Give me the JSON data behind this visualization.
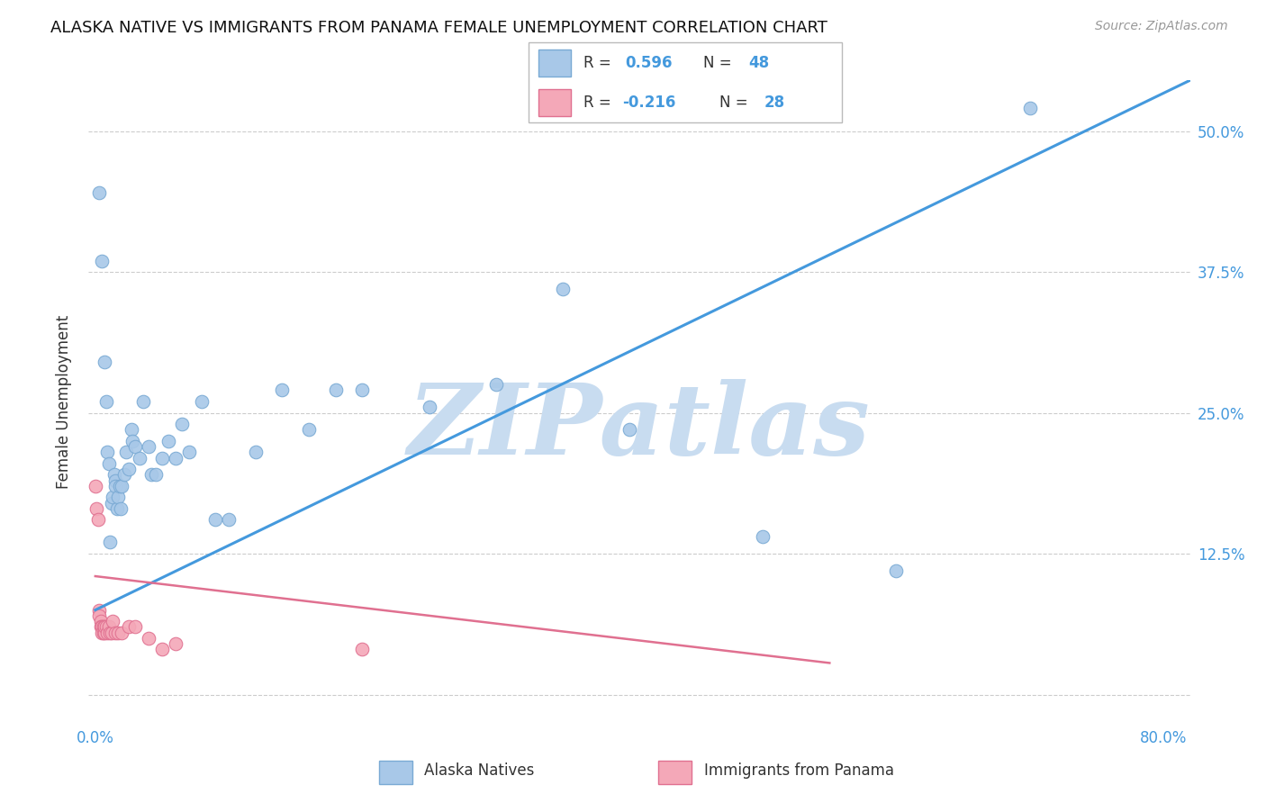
{
  "title": "ALASKA NATIVE VS IMMIGRANTS FROM PANAMA FEMALE UNEMPLOYMENT CORRELATION CHART",
  "source": "Source: ZipAtlas.com",
  "ylabel": "Female Unemployment",
  "xlim": [
    -0.005,
    0.82
  ],
  "ylim": [
    -0.025,
    0.545
  ],
  "ytick_vals": [
    0.0,
    0.125,
    0.25,
    0.375,
    0.5
  ],
  "ytick_labels": [
    "",
    "12.5%",
    "25.0%",
    "37.5%",
    "50.0%"
  ],
  "xtick_vals": [
    0.0,
    0.1,
    0.2,
    0.3,
    0.4,
    0.5,
    0.6,
    0.7,
    0.8
  ],
  "xtick_labels": [
    "0.0%",
    "",
    "",
    "",
    "",
    "",
    "",
    "",
    "80.0%"
  ],
  "alaska_color": "#a8c8e8",
  "alaska_edge": "#7aaad4",
  "panama_color": "#f4a8b8",
  "panama_edge": "#e07090",
  "blue_line_color": "#4499dd",
  "pink_line_color": "#e07090",
  "watermark": "ZIPatlas",
  "watermark_color": "#c8dcf0",
  "grid_color": "#cccccc",
  "background_color": "#ffffff",
  "alaska_x": [
    0.003,
    0.005,
    0.007,
    0.008,
    0.009,
    0.01,
    0.011,
    0.012,
    0.013,
    0.014,
    0.015,
    0.015,
    0.016,
    0.017,
    0.018,
    0.019,
    0.02,
    0.022,
    0.023,
    0.025,
    0.027,
    0.028,
    0.03,
    0.033,
    0.036,
    0.04,
    0.042,
    0.045,
    0.05,
    0.055,
    0.06,
    0.065,
    0.07,
    0.08,
    0.09,
    0.1,
    0.12,
    0.14,
    0.16,
    0.18,
    0.2,
    0.25,
    0.3,
    0.35,
    0.4,
    0.5,
    0.6,
    0.7
  ],
  "alaska_y": [
    0.445,
    0.385,
    0.295,
    0.26,
    0.215,
    0.205,
    0.135,
    0.17,
    0.175,
    0.195,
    0.19,
    0.185,
    0.165,
    0.175,
    0.185,
    0.165,
    0.185,
    0.195,
    0.215,
    0.2,
    0.235,
    0.225,
    0.22,
    0.21,
    0.26,
    0.22,
    0.195,
    0.195,
    0.21,
    0.225,
    0.21,
    0.24,
    0.215,
    0.26,
    0.155,
    0.155,
    0.215,
    0.27,
    0.235,
    0.27,
    0.27,
    0.255,
    0.275,
    0.36,
    0.235,
    0.14,
    0.11,
    0.52
  ],
  "panama_x": [
    0.0,
    0.001,
    0.002,
    0.003,
    0.003,
    0.004,
    0.004,
    0.005,
    0.005,
    0.006,
    0.006,
    0.007,
    0.007,
    0.008,
    0.009,
    0.01,
    0.011,
    0.012,
    0.013,
    0.015,
    0.017,
    0.02,
    0.025,
    0.03,
    0.04,
    0.05,
    0.06,
    0.2
  ],
  "panama_y": [
    0.185,
    0.165,
    0.155,
    0.075,
    0.07,
    0.065,
    0.06,
    0.06,
    0.055,
    0.06,
    0.055,
    0.055,
    0.06,
    0.06,
    0.055,
    0.06,
    0.055,
    0.055,
    0.065,
    0.055,
    0.055,
    0.055,
    0.06,
    0.06,
    0.05,
    0.04,
    0.045,
    0.04
  ],
  "blue_line_x": [
    0.0,
    0.82
  ],
  "blue_line_y": [
    0.075,
    0.545
  ],
  "pink_line_x": [
    0.0,
    0.55
  ],
  "pink_line_y": [
    0.105,
    0.028
  ]
}
